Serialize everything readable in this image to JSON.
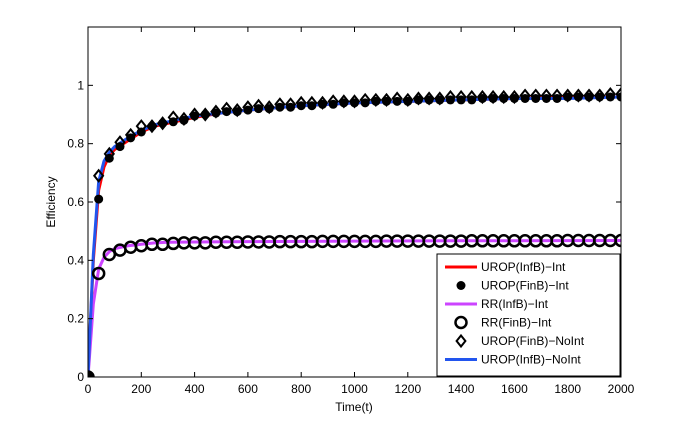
{
  "chart_data": {
    "type": "line",
    "title": "",
    "xlabel": "Time(t)",
    "ylabel": "Efficiency",
    "xlim": [
      0,
      2000
    ],
    "ylim": [
      0,
      1.2
    ],
    "xticks": [
      0,
      200,
      400,
      600,
      800,
      1000,
      1200,
      1400,
      1600,
      1800,
      2000
    ],
    "yticks": [
      0,
      0.2,
      0.4,
      0.6,
      0.8,
      1
    ],
    "xtick_labels": [
      "0",
      "200",
      "400",
      "600",
      "800",
      "1000",
      "1200",
      "1400",
      "1600",
      "1800",
      "2000"
    ],
    "ytick_labels": [
      "0",
      "0.2",
      "0.4",
      "0.6",
      "0.8",
      "1"
    ],
    "grid": false,
    "legend_position": "bottom-right",
    "series": [
      {
        "name": "UROP(InfB)−Int",
        "style": "line",
        "color": "#ff0000",
        "x": [
          0,
          20,
          40,
          60,
          80,
          100,
          150,
          200,
          250,
          300,
          400,
          500,
          600,
          800,
          1000,
          1200,
          1400,
          1600,
          1800,
          2000
        ],
        "y": [
          0,
          0.4,
          0.64,
          0.72,
          0.76,
          0.78,
          0.81,
          0.84,
          0.86,
          0.87,
          0.89,
          0.905,
          0.915,
          0.93,
          0.94,
          0.945,
          0.95,
          0.955,
          0.96,
          0.96
        ]
      },
      {
        "name": "UROP(FinB)−Int",
        "style": "marker-dot",
        "color": "#000000",
        "x": [
          0,
          40,
          80,
          120,
          160,
          200,
          240,
          280,
          320,
          360,
          400,
          440,
          480,
          520,
          560,
          600,
          640,
          680,
          720,
          760,
          800,
          840,
          880,
          920,
          960,
          1000,
          1040,
          1080,
          1120,
          1160,
          1200,
          1240,
          1280,
          1320,
          1360,
          1400,
          1440,
          1480,
          1520,
          1560,
          1600,
          1640,
          1680,
          1720,
          1760,
          1800,
          1840,
          1880,
          1920,
          1960,
          2000
        ],
        "y": [
          0,
          0.61,
          0.75,
          0.79,
          0.82,
          0.84,
          0.86,
          0.87,
          0.875,
          0.88,
          0.895,
          0.9,
          0.905,
          0.91,
          0.91,
          0.915,
          0.92,
          0.92,
          0.925,
          0.925,
          0.93,
          0.93,
          0.935,
          0.935,
          0.94,
          0.94,
          0.94,
          0.945,
          0.945,
          0.945,
          0.945,
          0.95,
          0.95,
          0.95,
          0.95,
          0.95,
          0.95,
          0.955,
          0.955,
          0.955,
          0.955,
          0.955,
          0.955,
          0.955,
          0.955,
          0.96,
          0.96,
          0.96,
          0.96,
          0.96,
          0.96
        ]
      },
      {
        "name": "RR(InfB)−Int",
        "style": "line",
        "color": "#cc44ff",
        "x": [
          0,
          20,
          40,
          60,
          80,
          100,
          150,
          200,
          250,
          300,
          400,
          600,
          800,
          1000,
          1400,
          2000
        ],
        "y": [
          0,
          0.25,
          0.37,
          0.41,
          0.43,
          0.44,
          0.45,
          0.455,
          0.46,
          0.462,
          0.463,
          0.464,
          0.465,
          0.466,
          0.467,
          0.468
        ]
      },
      {
        "name": "RR(FinB)−Int",
        "style": "marker-circle",
        "color": "#000000",
        "x": [
          0,
          40,
          80,
          120,
          160,
          200,
          240,
          280,
          320,
          360,
          400,
          440,
          480,
          520,
          560,
          600,
          640,
          680,
          720,
          760,
          800,
          840,
          880,
          920,
          960,
          1000,
          1040,
          1080,
          1120,
          1160,
          1200,
          1240,
          1280,
          1320,
          1360,
          1400,
          1440,
          1480,
          1520,
          1560,
          1600,
          1640,
          1680,
          1720,
          1760,
          1800,
          1840,
          1880,
          1920,
          1960,
          2000
        ],
        "y": [
          0,
          0.355,
          0.42,
          0.435,
          0.445,
          0.45,
          0.455,
          0.455,
          0.458,
          0.46,
          0.46,
          0.46,
          0.462,
          0.462,
          0.462,
          0.463,
          0.463,
          0.463,
          0.464,
          0.464,
          0.464,
          0.464,
          0.465,
          0.465,
          0.465,
          0.465,
          0.465,
          0.465,
          0.466,
          0.466,
          0.466,
          0.466,
          0.466,
          0.466,
          0.466,
          0.466,
          0.467,
          0.467,
          0.467,
          0.467,
          0.467,
          0.467,
          0.467,
          0.467,
          0.467,
          0.468,
          0.468,
          0.468,
          0.468,
          0.468,
          0.468
        ]
      },
      {
        "name": "UROP(FinB)−NoInt",
        "style": "marker-diamond",
        "color": "#000000",
        "x": [
          0,
          40,
          80,
          120,
          160,
          200,
          240,
          280,
          320,
          360,
          400,
          440,
          480,
          520,
          560,
          600,
          640,
          680,
          720,
          760,
          800,
          840,
          880,
          920,
          960,
          1000,
          1040,
          1080,
          1120,
          1160,
          1200,
          1240,
          1280,
          1320,
          1360,
          1400,
          1440,
          1480,
          1520,
          1560,
          1600,
          1640,
          1680,
          1720,
          1760,
          1800,
          1840,
          1880,
          1920,
          1960,
          2000
        ],
        "y": [
          0,
          0.69,
          0.765,
          0.805,
          0.83,
          0.86,
          0.86,
          0.87,
          0.89,
          0.885,
          0.9,
          0.9,
          0.91,
          0.92,
          0.915,
          0.925,
          0.93,
          0.925,
          0.935,
          0.935,
          0.94,
          0.94,
          0.94,
          0.945,
          0.945,
          0.945,
          0.95,
          0.95,
          0.95,
          0.955,
          0.95,
          0.955,
          0.955,
          0.955,
          0.96,
          0.96,
          0.96,
          0.96,
          0.96,
          0.96,
          0.96,
          0.965,
          0.965,
          0.965,
          0.965,
          0.965,
          0.965,
          0.965,
          0.965,
          0.97,
          0.97
        ]
      },
      {
        "name": "UROP(InfB)−NoInt",
        "style": "line",
        "color": "#2255ee",
        "x": [
          0,
          20,
          40,
          60,
          80,
          100,
          150,
          200,
          250,
          300,
          400,
          500,
          600,
          800,
          1000,
          1200,
          1400,
          1600,
          1800,
          2000
        ],
        "y": [
          0,
          0.42,
          0.67,
          0.74,
          0.77,
          0.79,
          0.82,
          0.845,
          0.865,
          0.875,
          0.895,
          0.905,
          0.915,
          0.93,
          0.94,
          0.945,
          0.95,
          0.955,
          0.955,
          0.96
        ]
      }
    ]
  }
}
